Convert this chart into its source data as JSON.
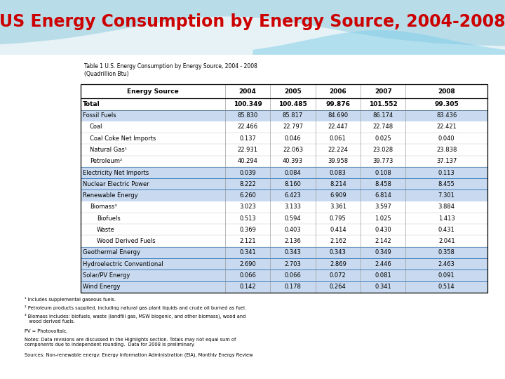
{
  "title": "US Energy Consumption by Energy Source, 2004-2008",
  "table_title": "Table 1 U.S. Energy Consumption by Energy Source, 2004 - 2008\n(Quadrillion Btu)",
  "columns": [
    "Energy Source",
    "2004",
    "2005",
    "2006",
    "2007",
    "2008"
  ],
  "rows": [
    {
      "label": "Total",
      "values": [
        "100.349",
        "100.485",
        "99.876",
        "101.552",
        "99.305"
      ],
      "bold": true,
      "bg": false,
      "indent": 0
    },
    {
      "label": "Fossil Fuels",
      "values": [
        "85.830",
        "85.817",
        "84.690",
        "86.174",
        "83.436"
      ],
      "bold": false,
      "bg": true,
      "indent": 0
    },
    {
      "label": "Coal",
      "values": [
        "22.466",
        "22.797",
        "22.447",
        "22.748",
        "22.421"
      ],
      "bold": false,
      "bg": false,
      "indent": 1
    },
    {
      "label": "Coal Coke Net Imports",
      "values": [
        "0.137",
        "0.046",
        "0.061",
        "0.025",
        "0.040"
      ],
      "bold": false,
      "bg": false,
      "indent": 1
    },
    {
      "label": "Natural Gas¹",
      "values": [
        "22.931",
        "22.063",
        "22.224",
        "23.028",
        "23.838"
      ],
      "bold": false,
      "bg": false,
      "indent": 1
    },
    {
      "label": "Petroleum²",
      "values": [
        "40.294",
        "40.393",
        "39.958",
        "39.773",
        "37.137"
      ],
      "bold": false,
      "bg": false,
      "indent": 1
    },
    {
      "label": "Electricity Net Imports",
      "values": [
        "0.039",
        "0.084",
        "0.083",
        "0.108",
        "0.113"
      ],
      "bold": false,
      "bg": true,
      "indent": 0
    },
    {
      "label": "Nuclear Electric Power",
      "values": [
        "8.222",
        "8.160",
        "8.214",
        "8.458",
        "8.455"
      ],
      "bold": false,
      "bg": true,
      "indent": 0
    },
    {
      "label": "Renewable Energy",
      "values": [
        "6.260",
        "6.423",
        "6.909",
        "6.814",
        "7.301"
      ],
      "bold": false,
      "bg": true,
      "indent": 0
    },
    {
      "label": "Biomass³",
      "values": [
        "3.023",
        "3.133",
        "3.361",
        "3.597",
        "3.884"
      ],
      "bold": false,
      "bg": false,
      "indent": 1
    },
    {
      "label": "Biofuels",
      "values": [
        "0.513",
        "0.594",
        "0.795",
        "1.025",
        "1.413"
      ],
      "bold": false,
      "bg": false,
      "indent": 2
    },
    {
      "label": "Waste",
      "values": [
        "0.369",
        "0.403",
        "0.414",
        "0.430",
        "0.431"
      ],
      "bold": false,
      "bg": false,
      "indent": 2
    },
    {
      "label": "Wood Derived Fuels",
      "values": [
        "2.121",
        "2.136",
        "2.162",
        "2.142",
        "2.041"
      ],
      "bold": false,
      "bg": false,
      "indent": 2
    },
    {
      "label": "Geothermal Energy",
      "values": [
        "0.341",
        "0.343",
        "0.343",
        "0.349",
        "0.358"
      ],
      "bold": false,
      "bg": true,
      "indent": 0
    },
    {
      "label": "Hydroelectric Conventional",
      "values": [
        "2.690",
        "2.703",
        "2.869",
        "2.446",
        "2.463"
      ],
      "bold": false,
      "bg": true,
      "indent": 0
    },
    {
      "label": "Solar/PV Energy",
      "values": [
        "0.066",
        "0.066",
        "0.072",
        "0.081",
        "0.091"
      ],
      "bold": false,
      "bg": true,
      "indent": 0
    },
    {
      "label": "Wind Energy",
      "values": [
        "0.142",
        "0.178",
        "0.264",
        "0.341",
        "0.514"
      ],
      "bold": false,
      "bg": true,
      "indent": 0
    }
  ],
  "footnotes": [
    "¹ Includes supplemental gaseous fuels.",
    "² Petroleum products supplied, including natural gas plant liquids and crude oil burned as fuel.",
    "³ Biomass includes: biofuels, waste (landfill gas, MSW biogenic, and other biomass), wood and\n   wood derived fuels.",
    "PV = Photovoltaic.",
    "Notes: Data revisions are discussed in the Highlights section. Totals may not equal sum of\ncomponents due to independent rounding.  Data for 2008 is preliminary.",
    "Sources: Non-renewable energy: Energy Information Administration (EIA), Monthly Energy Review"
  ],
  "title_color": "#cc0000",
  "row_bg_color": "#c9daf0",
  "row_border_color": "#2e75b6",
  "bg_color": "#b8dce8",
  "bg_wave1": "#7ecde8",
  "bg_wave2": "#ffffff"
}
